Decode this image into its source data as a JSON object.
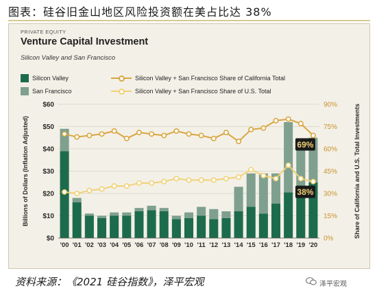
{
  "caption": "图表：硅谷旧金山地区风险投资额在美占比达 38%",
  "source": "资料来源：《2021 硅谷指数》，泽平宏观",
  "watermark": "泽平宏观",
  "colors": {
    "sv": "#1d6b4d",
    "sf": "#7fa08f",
    "line_ca": "#d9a640",
    "line_us": "#f1d277",
    "panel": "#f3f0e7",
    "badge": "#1a1a1a",
    "badge_text": "#f1d277"
  },
  "chart_data": {
    "type": "bar",
    "eyebrow": "PRIVATE EQUITY",
    "title": "Venture Capital Investment",
    "subtitle": "Silicon Valley and San Francisco",
    "categories": [
      "'00",
      "'01",
      "'02",
      "'03",
      "'04",
      "'05",
      "'06",
      "'07",
      "'08",
      "'09",
      "'10",
      "'11",
      "'12",
      "'13",
      "'14",
      "'15",
      "'16",
      "'17",
      "'18",
      "'19",
      "'20"
    ],
    "stacked": true,
    "ylabel": "Billions of Dollars (Inflation Adjusted)",
    "ylim": [
      0,
      60
    ],
    "yticks": [
      "$0",
      "$10",
      "$20",
      "$30",
      "$40",
      "$50",
      "$60"
    ],
    "y2label": "Share of California and U.S. Total Investments",
    "y2lim": [
      0,
      90
    ],
    "y2ticks": [
      "0%",
      "15%",
      "30%",
      "45%",
      "60%",
      "75%",
      "90%"
    ],
    "series": [
      {
        "name": "Silicon Valley",
        "kind": "bar",
        "values": [
          39,
          16,
          10,
          9,
          10,
          10,
          12,
          12.5,
          12,
          8.5,
          9,
          10,
          8.5,
          9,
          12,
          14,
          11,
          15.5,
          20.5,
          21,
          25
        ]
      },
      {
        "name": "San Francisco",
        "kind": "bar",
        "values": [
          10,
          2,
          1,
          1,
          1.5,
          1.5,
          1.5,
          2,
          1.5,
          1.5,
          2.5,
          4,
          4.5,
          3,
          11,
          15,
          18,
          13.5,
          31.5,
          22,
          20
        ]
      },
      {
        "name": "Silicon Valley + San Francisco Share of California Total",
        "kind": "line",
        "axis": "right",
        "values": [
          70,
          68,
          69,
          70,
          72,
          67,
          71,
          70,
          69,
          72,
          70,
          69,
          67,
          71,
          65,
          73,
          74,
          79,
          80,
          77,
          69
        ]
      },
      {
        "name": "Silicon Valley + San Francisco Share of U.S. Total",
        "kind": "line",
        "axis": "right",
        "values": [
          31,
          30,
          32,
          33,
          35,
          35,
          37,
          37,
          38,
          40,
          39,
          39,
          39,
          40,
          41,
          46,
          42,
          40,
          49,
          40,
          38
        ]
      }
    ],
    "annotations": [
      {
        "text": "69%",
        "series": 2,
        "index": 20
      },
      {
        "text": "38%",
        "series": 3,
        "index": 20
      }
    ],
    "grid": true,
    "legend": "top"
  }
}
